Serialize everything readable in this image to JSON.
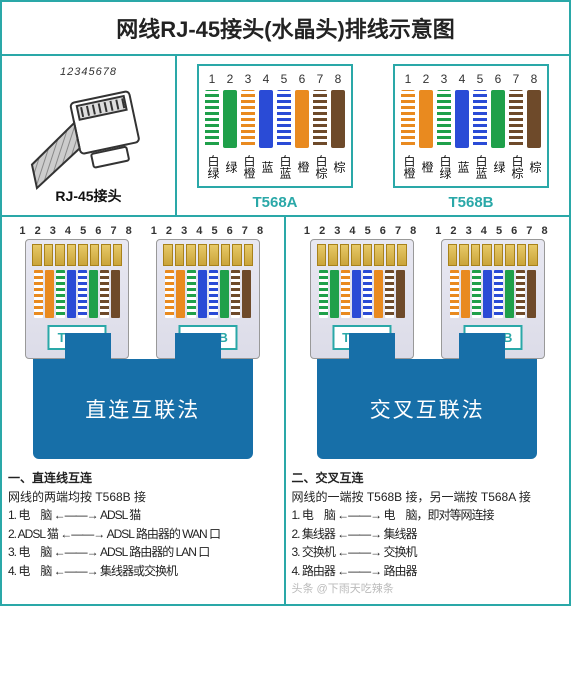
{
  "title": "网线RJ-45接头(水晶头)排线示意图",
  "connector": {
    "numbers": "12345678",
    "label": "RJ-45接头"
  },
  "colors": {
    "green": "#1fa04a",
    "orange": "#e98a1f",
    "blue": "#2a4bd6",
    "brown": "#6e4a2a",
    "teal": "#2aa8a8",
    "stem": "#176fa8"
  },
  "standards": {
    "t568a": {
      "name": "T568A",
      "pins": [
        "1",
        "2",
        "3",
        "4",
        "5",
        "6",
        "7",
        "8"
      ],
      "wires": [
        {
          "striped": true,
          "color": "#1fa04a"
        },
        {
          "striped": false,
          "color": "#1fa04a"
        },
        {
          "striped": true,
          "color": "#e98a1f"
        },
        {
          "striped": false,
          "color": "#2a4bd6"
        },
        {
          "striped": true,
          "color": "#2a4bd6"
        },
        {
          "striped": false,
          "color": "#e98a1f"
        },
        {
          "striped": true,
          "color": "#6e4a2a"
        },
        {
          "striped": false,
          "color": "#6e4a2a"
        }
      ],
      "labels": [
        "白绿",
        "绿",
        "白橙",
        "蓝",
        "白蓝",
        "橙",
        "白棕",
        "棕"
      ]
    },
    "t568b": {
      "name": "T568B",
      "pins": [
        "1",
        "2",
        "3",
        "4",
        "5",
        "6",
        "7",
        "8"
      ],
      "wires": [
        {
          "striped": true,
          "color": "#e98a1f"
        },
        {
          "striped": false,
          "color": "#e98a1f"
        },
        {
          "striped": true,
          "color": "#1fa04a"
        },
        {
          "striped": false,
          "color": "#2a4bd6"
        },
        {
          "striped": true,
          "color": "#2a4bd6"
        },
        {
          "striped": false,
          "color": "#1fa04a"
        },
        {
          "striped": true,
          "color": "#6e4a2a"
        },
        {
          "striped": false,
          "color": "#6e4a2a"
        }
      ],
      "labels": [
        "白橙",
        "橙",
        "白绿",
        "蓝",
        "白蓝",
        "绿",
        "白棕",
        "棕"
      ]
    }
  },
  "methods": {
    "straight": {
      "plug_numbers": "1 2 3 4 5 6 7 8",
      "left_tag": "T568B",
      "right_tag": "T568B",
      "left_scheme": "t568b",
      "right_scheme": "t568b",
      "label": "直连互联法",
      "desc_heading": "一、直连线互连",
      "desc_sub": "网线的两端均按 T568B 接",
      "desc_rows": [
        "1.  电　脑 ←——→ ADSL 猫",
        "2.  ADSL 猫 ←——→ ADSL 路由器的 WAN 口",
        "3.  电　脑 ←——→ ADSL 路由器的 LAN 口",
        "4.  电　脑 ←——→ 集线器或交换机"
      ]
    },
    "crossover": {
      "plug_numbers": "1 2 3 4 5 6 7 8",
      "left_tag": "T568A",
      "right_tag": "T568B",
      "left_scheme": "t568a",
      "right_scheme": "t568b",
      "label": "交叉互联法",
      "desc_heading": "二、交叉互连",
      "desc_sub": "网线的一端按 T568B 接，另一端按 T568A 接",
      "desc_rows": [
        "1.  电　脑 ←——→ 电　脑，即对等网连接",
        "2.  集线器 ←——→ 集线器",
        "3.  交换机 ←——→ 交换机",
        "4.  路由器 ←——→ 路由器"
      ],
      "watermark": "头条 @下雨天吃辣条"
    }
  }
}
